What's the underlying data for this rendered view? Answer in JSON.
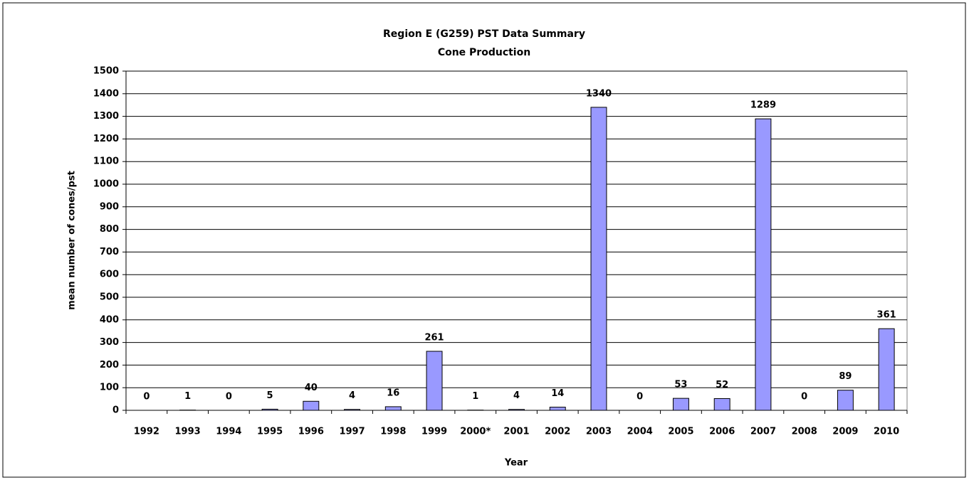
{
  "chart_data": {
    "type": "bar",
    "title": "Region E (G259) PST Data Summary",
    "subtitle": "Cone Production",
    "x_label": "Year",
    "y_label": "mean number of cones/pst",
    "categories": [
      "1992",
      "1993",
      "1994",
      "1995",
      "1996",
      "1997",
      "1998",
      "1999",
      "2000*",
      "2001",
      "2002",
      "2003",
      "2004",
      "2005",
      "2006",
      "2007",
      "2008",
      "2009",
      "2010"
    ],
    "values": [
      0,
      1,
      0,
      5,
      40,
      4,
      16,
      261,
      1,
      4,
      14,
      1340,
      0,
      53,
      52,
      1289,
      0,
      89,
      361
    ],
    "color": "#9999ff",
    "ylim": [
      0,
      1500
    ],
    "yticks": [
      0,
      100,
      200,
      300,
      400,
      500,
      600,
      700,
      800,
      900,
      1000,
      1100,
      1200,
      1300,
      1400,
      1500
    ],
    "grid": true
  }
}
